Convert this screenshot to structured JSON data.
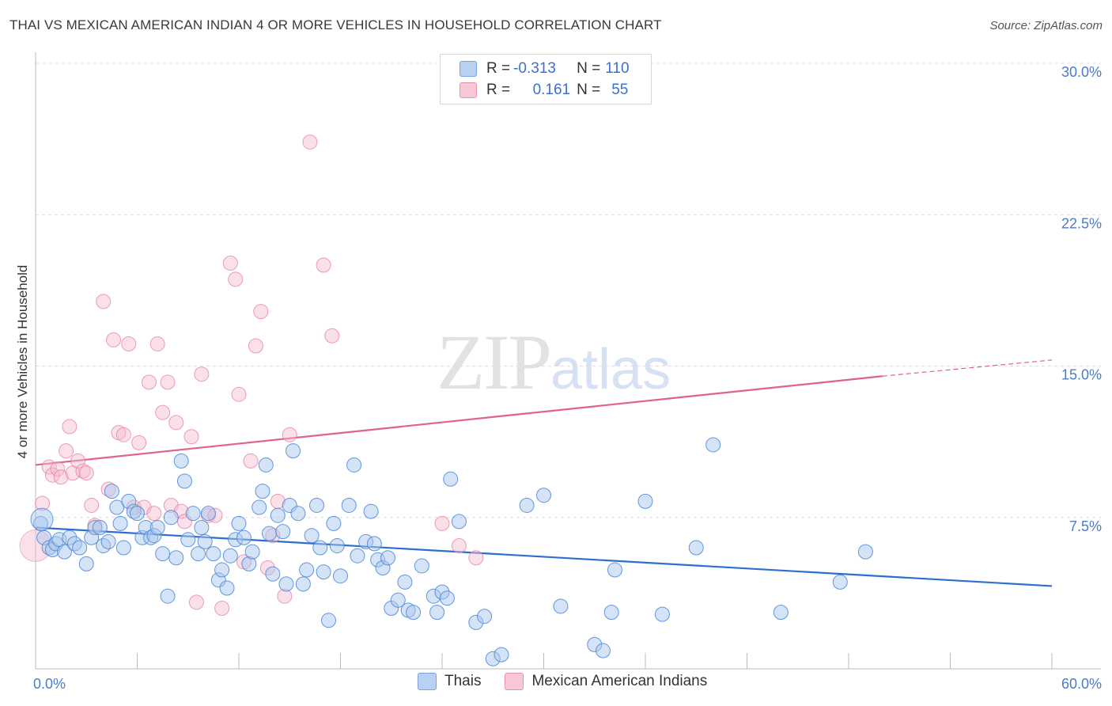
{
  "title": "THAI VS MEXICAN AMERICAN INDIAN 4 OR MORE VEHICLES IN HOUSEHOLD CORRELATION CHART",
  "source": "Source: ZipAtlas.com",
  "watermark": {
    "zip": "ZIP",
    "atlas": "atlas"
  },
  "legend": {
    "rows": [
      {
        "r_label": "R = ",
        "r_value": "-0.313",
        "n_label": "N = ",
        "n_value": "110"
      },
      {
        "r_label": "R = ",
        "r_value": "0.161",
        "n_label": "N = ",
        "n_value": "55"
      }
    ]
  },
  "bottom_legend": [
    "Thais",
    "Mexican American Indians"
  ],
  "colors": {
    "blue": "#4a86d8",
    "blue_fill": "#aac8ee",
    "pink": "#e8739c",
    "pink_fill": "#f5bccf",
    "trend_blue": "#2c6fcf",
    "trend_pink": "#e0628e"
  },
  "chart_data": {
    "type": "scatter",
    "title": "THAI VS MEXICAN AMERICAN INDIAN 4 OR MORE VEHICLES IN HOUSEHOLD CORRELATION CHART",
    "xlabel": "",
    "ylabel": "4 or more Vehicles in Household",
    "xlim": [
      0,
      60
    ],
    "ylim": [
      0,
      30
    ],
    "x_ticks": [
      "0.0%",
      "60.0%"
    ],
    "y_ticks": [
      {
        "value": 7.5,
        "label": "7.5%"
      },
      {
        "value": 15,
        "label": "15.0%"
      },
      {
        "value": 22.5,
        "label": "22.5%"
      },
      {
        "value": 30,
        "label": "30.0%"
      }
    ],
    "grid": true,
    "legend_position": "top-center",
    "series": [
      {
        "name": "Thais",
        "trend": {
          "x": [
            0,
            60
          ],
          "y": [
            7.0,
            4.1
          ]
        },
        "points": [
          [
            0.3,
            7.2
          ],
          [
            0.5,
            6.5
          ],
          [
            0.8,
            6.0
          ],
          [
            1.0,
            5.9
          ],
          [
            1.2,
            6.2
          ],
          [
            1.4,
            6.4
          ],
          [
            1.7,
            5.8
          ],
          [
            2.0,
            6.5
          ],
          [
            2.3,
            6.2
          ],
          [
            2.6,
            6.0
          ],
          [
            3.0,
            5.2
          ],
          [
            3.3,
            6.5
          ],
          [
            3.5,
            7.0
          ],
          [
            3.8,
            7.0
          ],
          [
            4.0,
            6.1
          ],
          [
            4.3,
            6.3
          ],
          [
            4.5,
            8.8
          ],
          [
            4.8,
            8.0
          ],
          [
            5.0,
            7.2
          ],
          [
            5.2,
            6.0
          ],
          [
            5.5,
            8.3
          ],
          [
            5.8,
            7.8
          ],
          [
            6.0,
            7.7
          ],
          [
            6.3,
            6.5
          ],
          [
            6.5,
            7.0
          ],
          [
            6.8,
            6.5
          ],
          [
            7.0,
            6.6
          ],
          [
            7.2,
            7.0
          ],
          [
            7.5,
            5.7
          ],
          [
            7.8,
            3.6
          ],
          [
            8.0,
            7.5
          ],
          [
            8.3,
            5.5
          ],
          [
            8.6,
            10.3
          ],
          [
            8.8,
            9.3
          ],
          [
            9.0,
            6.4
          ],
          [
            9.3,
            7.7
          ],
          [
            9.6,
            5.7
          ],
          [
            9.8,
            7.0
          ],
          [
            10.0,
            6.3
          ],
          [
            10.2,
            7.7
          ],
          [
            10.5,
            5.7
          ],
          [
            10.8,
            4.4
          ],
          [
            11.0,
            4.9
          ],
          [
            11.3,
            4.0
          ],
          [
            11.5,
            5.6
          ],
          [
            11.8,
            6.4
          ],
          [
            12.0,
            7.2
          ],
          [
            12.3,
            6.5
          ],
          [
            12.6,
            5.2
          ],
          [
            12.8,
            5.8
          ],
          [
            13.2,
            8.0
          ],
          [
            13.4,
            8.8
          ],
          [
            13.6,
            10.1
          ],
          [
            13.8,
            6.7
          ],
          [
            14.0,
            4.7
          ],
          [
            14.3,
            7.6
          ],
          [
            14.6,
            6.8
          ],
          [
            14.8,
            4.2
          ],
          [
            15.0,
            8.1
          ],
          [
            15.2,
            10.8
          ],
          [
            15.5,
            7.7
          ],
          [
            15.8,
            4.2
          ],
          [
            16.0,
            4.9
          ],
          [
            16.3,
            6.6
          ],
          [
            16.6,
            8.1
          ],
          [
            16.8,
            6.0
          ],
          [
            17.0,
            4.8
          ],
          [
            17.3,
            2.4
          ],
          [
            17.6,
            7.2
          ],
          [
            17.8,
            6.1
          ],
          [
            18.0,
            4.6
          ],
          [
            18.5,
            8.1
          ],
          [
            18.8,
            10.1
          ],
          [
            19.0,
            5.6
          ],
          [
            19.5,
            6.3
          ],
          [
            19.8,
            7.8
          ],
          [
            20.0,
            6.2
          ],
          [
            20.2,
            5.4
          ],
          [
            20.5,
            5.0
          ],
          [
            20.8,
            5.5
          ],
          [
            21.0,
            3.0
          ],
          [
            21.4,
            3.4
          ],
          [
            21.8,
            4.3
          ],
          [
            22.0,
            2.9
          ],
          [
            22.3,
            2.8
          ],
          [
            22.8,
            5.1
          ],
          [
            23.5,
            3.6
          ],
          [
            23.7,
            2.8
          ],
          [
            24.0,
            3.8
          ],
          [
            24.3,
            3.5
          ],
          [
            24.5,
            9.4
          ],
          [
            25.0,
            7.3
          ],
          [
            26.0,
            2.3
          ],
          [
            26.5,
            2.6
          ],
          [
            27.0,
            0.5
          ],
          [
            27.5,
            0.7
          ],
          [
            29.0,
            8.1
          ],
          [
            30.0,
            8.6
          ],
          [
            31.0,
            3.1
          ],
          [
            33.0,
            1.2
          ],
          [
            33.5,
            0.9
          ],
          [
            34.0,
            2.8
          ],
          [
            34.2,
            4.9
          ],
          [
            36.0,
            8.3
          ],
          [
            37.0,
            2.7
          ],
          [
            39.0,
            6.0
          ],
          [
            40.0,
            11.1
          ],
          [
            44.0,
            2.8
          ],
          [
            47.5,
            4.3
          ],
          [
            49.0,
            5.8
          ]
        ],
        "sizes_large": [
          [
            0.0,
            7.4
          ]
        ]
      },
      {
        "name": "Mexican American Indians",
        "trend": {
          "x": [
            0,
            50
          ],
          "y": [
            10.1,
            14.5
          ]
        },
        "trend_dashed": {
          "x": [
            50,
            60
          ],
          "y": [
            14.5,
            15.3
          ]
        },
        "points": [
          [
            0.4,
            8.2
          ],
          [
            0.8,
            10.0
          ],
          [
            1.0,
            9.6
          ],
          [
            1.3,
            9.9
          ],
          [
            1.5,
            9.5
          ],
          [
            1.8,
            10.8
          ],
          [
            2.0,
            12.0
          ],
          [
            2.2,
            9.7
          ],
          [
            2.5,
            10.3
          ],
          [
            2.8,
            9.8
          ],
          [
            3.0,
            9.7
          ],
          [
            3.3,
            8.1
          ],
          [
            3.5,
            7.1
          ],
          [
            4.0,
            18.2
          ],
          [
            4.3,
            8.9
          ],
          [
            4.6,
            16.3
          ],
          [
            4.9,
            11.7
          ],
          [
            5.2,
            11.6
          ],
          [
            5.5,
            16.1
          ],
          [
            5.8,
            8.0
          ],
          [
            6.1,
            11.2
          ],
          [
            6.4,
            8.0
          ],
          [
            6.7,
            14.2
          ],
          [
            7.0,
            7.7
          ],
          [
            7.2,
            16.1
          ],
          [
            7.5,
            12.7
          ],
          [
            7.8,
            14.2
          ],
          [
            8.0,
            8.1
          ],
          [
            8.3,
            12.2
          ],
          [
            8.6,
            7.8
          ],
          [
            8.8,
            7.3
          ],
          [
            9.2,
            11.5
          ],
          [
            9.5,
            3.3
          ],
          [
            9.8,
            14.6
          ],
          [
            10.2,
            7.6
          ],
          [
            10.6,
            7.6
          ],
          [
            11.0,
            3.0
          ],
          [
            11.5,
            20.1
          ],
          [
            11.8,
            19.3
          ],
          [
            12.0,
            13.6
          ],
          [
            12.3,
            5.3
          ],
          [
            12.7,
            10.3
          ],
          [
            13.0,
            16.0
          ],
          [
            13.3,
            17.7
          ],
          [
            13.7,
            5.0
          ],
          [
            14.0,
            6.6
          ],
          [
            14.3,
            8.3
          ],
          [
            14.7,
            3.6
          ],
          [
            15.0,
            11.6
          ],
          [
            16.2,
            26.1
          ],
          [
            17.0,
            20.0
          ],
          [
            17.5,
            16.5
          ],
          [
            24.0,
            7.2
          ],
          [
            25.0,
            6.1
          ],
          [
            26.0,
            5.5
          ]
        ]
      }
    ]
  }
}
